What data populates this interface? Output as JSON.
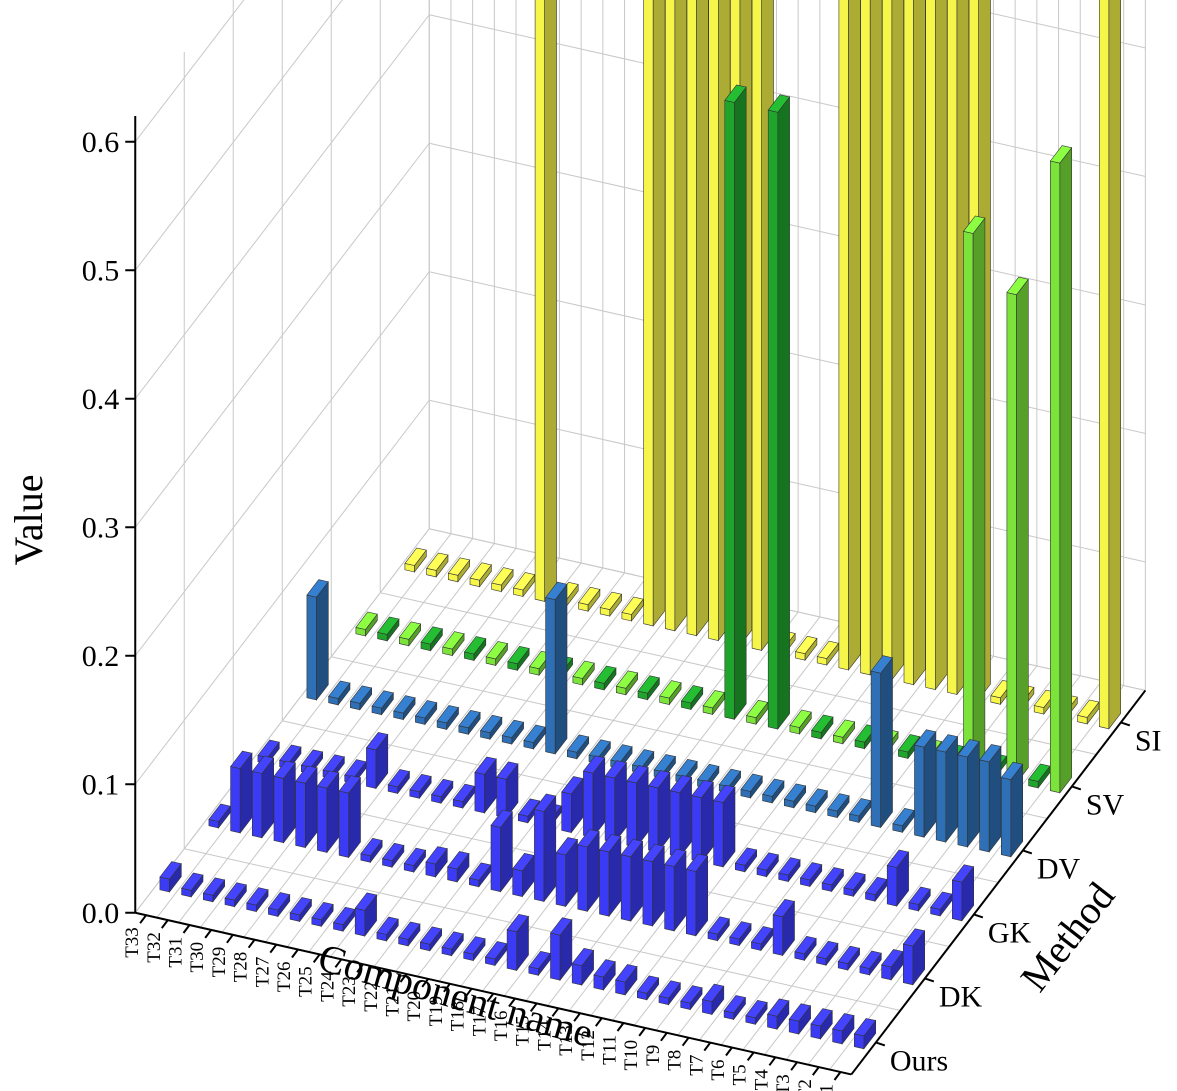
{
  "chart_data": {
    "type": "bar3d",
    "title": "",
    "zlabel": "Value",
    "xlabel": "Component name",
    "ylabel": "Method",
    "zlim": [
      0,
      0.6
    ],
    "zticks": [
      "0.0",
      "0.1",
      "0.2",
      "0.3",
      "0.4",
      "0.5",
      "0.6"
    ],
    "grid": true,
    "categories": [
      "T1",
      "T2",
      "T3",
      "T4",
      "T5",
      "T6",
      "T7",
      "T8",
      "T9",
      "T10",
      "T11",
      "T12",
      "T13",
      "T14",
      "T15",
      "T16",
      "T17",
      "T18",
      "T19",
      "T20",
      "T21",
      "T22",
      "T23",
      "T24",
      "T25",
      "T26",
      "T27",
      "T28",
      "T29",
      "T30",
      "T31",
      "T32",
      "T33"
    ],
    "series": [
      {
        "name": "Ours",
        "color": "#3b3bf5",
        "values": [
          0.01,
          0.01,
          0.01,
          0.01,
          0.01,
          0.005,
          0.005,
          0.01,
          0.005,
          0.005,
          0.005,
          0.01,
          0.01,
          0.015,
          0.035,
          0.005,
          0.03,
          0.005,
          0.005,
          0.005,
          0.005,
          0.005,
          0.005,
          0.02,
          0.005,
          0.005,
          0.005,
          0.005,
          0.005,
          0.005,
          0.005,
          0.005,
          0.01
        ]
      },
      {
        "name": "DK",
        "color": "#3b3bf5",
        "values": [
          0.03,
          0.01,
          0.005,
          0.005,
          0.005,
          0.005,
          0.03,
          0.005,
          0.005,
          0.005,
          0.05,
          0.05,
          0.05,
          0.05,
          0.05,
          0.05,
          0.04,
          0.07,
          0.02,
          0.05,
          0.005,
          0.01,
          0.01,
          0.005,
          0.005,
          0.005,
          0.05,
          0.05,
          0.05,
          0.05,
          0.05,
          0.05,
          0.005
        ]
      },
      {
        "name": "GK",
        "color": "#3b3bf5",
        "values": [
          0.03,
          0.005,
          0.005,
          0.03,
          0.005,
          0.005,
          0.005,
          0.005,
          0.005,
          0.005,
          0.005,
          0.05,
          0.05,
          0.05,
          0.05,
          0.05,
          0.05,
          0.05,
          0.03,
          0.005,
          0.005,
          0.03,
          0.03,
          0.005,
          0.005,
          0.005,
          0.005,
          0.03,
          0.005,
          0.005,
          0.005,
          0.005,
          0.005
        ]
      },
      {
        "name": "DV",
        "color": "#2e6fb5",
        "values": [
          0.06,
          0.07,
          0.07,
          0.07,
          0.07,
          0.005,
          0.12,
          0.005,
          0.005,
          0.005,
          0.005,
          0.005,
          0.005,
          0.005,
          0.005,
          0.005,
          0.005,
          0.005,
          0.005,
          0.005,
          0.005,
          0.12,
          0.005,
          0.005,
          0.005,
          0.005,
          0.005,
          0.005,
          0.005,
          0.005,
          0.005,
          0.005,
          0.08
        ]
      },
      {
        "name": "SV",
        "color": "#1fa52c",
        "values": [
          0.005,
          0.005,
          0.005,
          0.005,
          0.005,
          0.005,
          0.005,
          0.005,
          0.005,
          0.005,
          0.005,
          0.005,
          0.005,
          0.005,
          0.005,
          0.005,
          0.005,
          0.005,
          0.005,
          0.005,
          0.005,
          0.005,
          0.005,
          0.005,
          0.005,
          0.005,
          0.005,
          0.005,
          0.005,
          0.005,
          0.005,
          0.005,
          0.005
        ]
      },
      {
        "name": "SI",
        "color": "#f5f54a",
        "values": [
          0.005,
          0.005,
          0.005,
          0.005,
          0.005,
          0.005,
          0.005,
          0.005,
          0.005,
          0.005,
          0.005,
          0.005,
          0.005,
          0.005,
          0.005,
          0.005,
          0.005,
          0.005,
          0.005,
          0.005,
          0.005,
          0.005,
          0.005,
          0.005,
          0.005,
          0.005,
          0.005,
          0.005,
          0.005,
          0.005,
          0.005,
          0.005,
          0.005
        ]
      }
    ],
    "tall_bars": {
      "SI": [
        0.58,
        0.0,
        0.0,
        0.0,
        0.0,
        0.0,
        0.58,
        0.58,
        0.58,
        0.58,
        0.58,
        0.58,
        0.58,
        0.0,
        0.0,
        0.0,
        0.58,
        0.58,
        0.58,
        0.58,
        0.58,
        0.6,
        0.0,
        0.0,
        0.0,
        0.0,
        0.55,
        0.0,
        0.0,
        0.0,
        0.0,
        0.0,
        0.0
      ],
      "SV": [
        0.49,
        0.0,
        0.38,
        0.0,
        0.42,
        0.0,
        0.0,
        0.0,
        0.0,
        0.0,
        0.0,
        0.0,
        0.0,
        0.48,
        0.0,
        0.48,
        0.0,
        0.0,
        0.0,
        0.0,
        0.0,
        0.0,
        0.0,
        0.0,
        0.0,
        0.0,
        0.0,
        0.0,
        0.0,
        0.0,
        0.0,
        0.0,
        0.0
      ]
    }
  }
}
